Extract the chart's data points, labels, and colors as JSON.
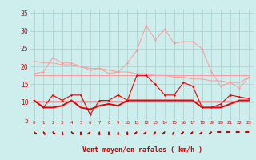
{
  "x": [
    0,
    1,
    2,
    3,
    4,
    5,
    6,
    7,
    8,
    9,
    10,
    11,
    12,
    13,
    14,
    15,
    16,
    17,
    18,
    19,
    20,
    21,
    22,
    23
  ],
  "line_rafales": [
    10.5,
    8.5,
    12.0,
    10.5,
    12.0,
    12.0,
    6.5,
    10.5,
    10.5,
    12.0,
    10.5,
    17.5,
    17.5,
    15.0,
    12.0,
    12.0,
    15.5,
    14.5,
    8.5,
    8.5,
    9.5,
    12.0,
    11.5,
    11.0
  ],
  "line_moyen": [
    10.5,
    8.5,
    8.5,
    9.0,
    10.5,
    8.5,
    8.0,
    9.0,
    9.5,
    9.0,
    10.5,
    10.5,
    10.5,
    10.5,
    10.5,
    10.5,
    10.5,
    10.5,
    8.5,
    8.5,
    8.5,
    9.5,
    10.5,
    10.5
  ],
  "line_max_rafales": [
    18.0,
    18.5,
    22.5,
    21.0,
    21.0,
    20.0,
    19.0,
    19.5,
    18.0,
    18.5,
    21.0,
    24.5,
    31.5,
    27.5,
    30.5,
    26.5,
    27.0,
    27.0,
    25.0,
    18.5,
    14.5,
    15.5,
    14.0,
    17.0
  ],
  "line_trend1": [
    21.5,
    21.0,
    21.0,
    20.5,
    20.5,
    20.0,
    19.5,
    19.5,
    19.0,
    18.5,
    18.5,
    18.0,
    18.0,
    17.5,
    17.5,
    17.0,
    17.0,
    16.5,
    16.5,
    16.0,
    16.0,
    15.5,
    15.5,
    17.0
  ],
  "line_trend2": [
    17.5,
    17.5,
    17.5,
    17.5,
    17.5,
    17.5,
    17.5,
    17.5,
    17.5,
    17.5,
    17.5,
    17.5,
    17.5,
    17.5,
    17.5,
    17.5,
    17.5,
    17.5,
    17.5,
    17.5,
    17.5,
    17.5,
    17.5,
    17.5
  ],
  "line_trend3": [
    10.5,
    10.5,
    10.5,
    10.5,
    10.5,
    10.5,
    10.5,
    10.5,
    10.5,
    10.5,
    10.5,
    10.5,
    10.5,
    10.5,
    10.5,
    10.5,
    10.5,
    10.5,
    10.5,
    10.5,
    10.5,
    10.5,
    10.5,
    10.5
  ],
  "wind_dirs": [
    45,
    30,
    45,
    15,
    45,
    0,
    315,
    0,
    0,
    0,
    0,
    315,
    315,
    330,
    315,
    330,
    315,
    315,
    315,
    315,
    270,
    270,
    270,
    270
  ],
  "bg_color": "#ceeeed",
  "grid_color": "#aed4d4",
  "line_color_dark": "#ee0000",
  "line_color_light": "#ff9999",
  "xlabel": "Vent moyen/en rafales ( km/h )",
  "xlabel_color": "#cc0000",
  "tick_color": "#cc0000",
  "ylim": [
    5,
    36
  ],
  "yticks": [
    5,
    10,
    15,
    20,
    25,
    30,
    35
  ],
  "xlim": [
    -0.5,
    23.5
  ]
}
